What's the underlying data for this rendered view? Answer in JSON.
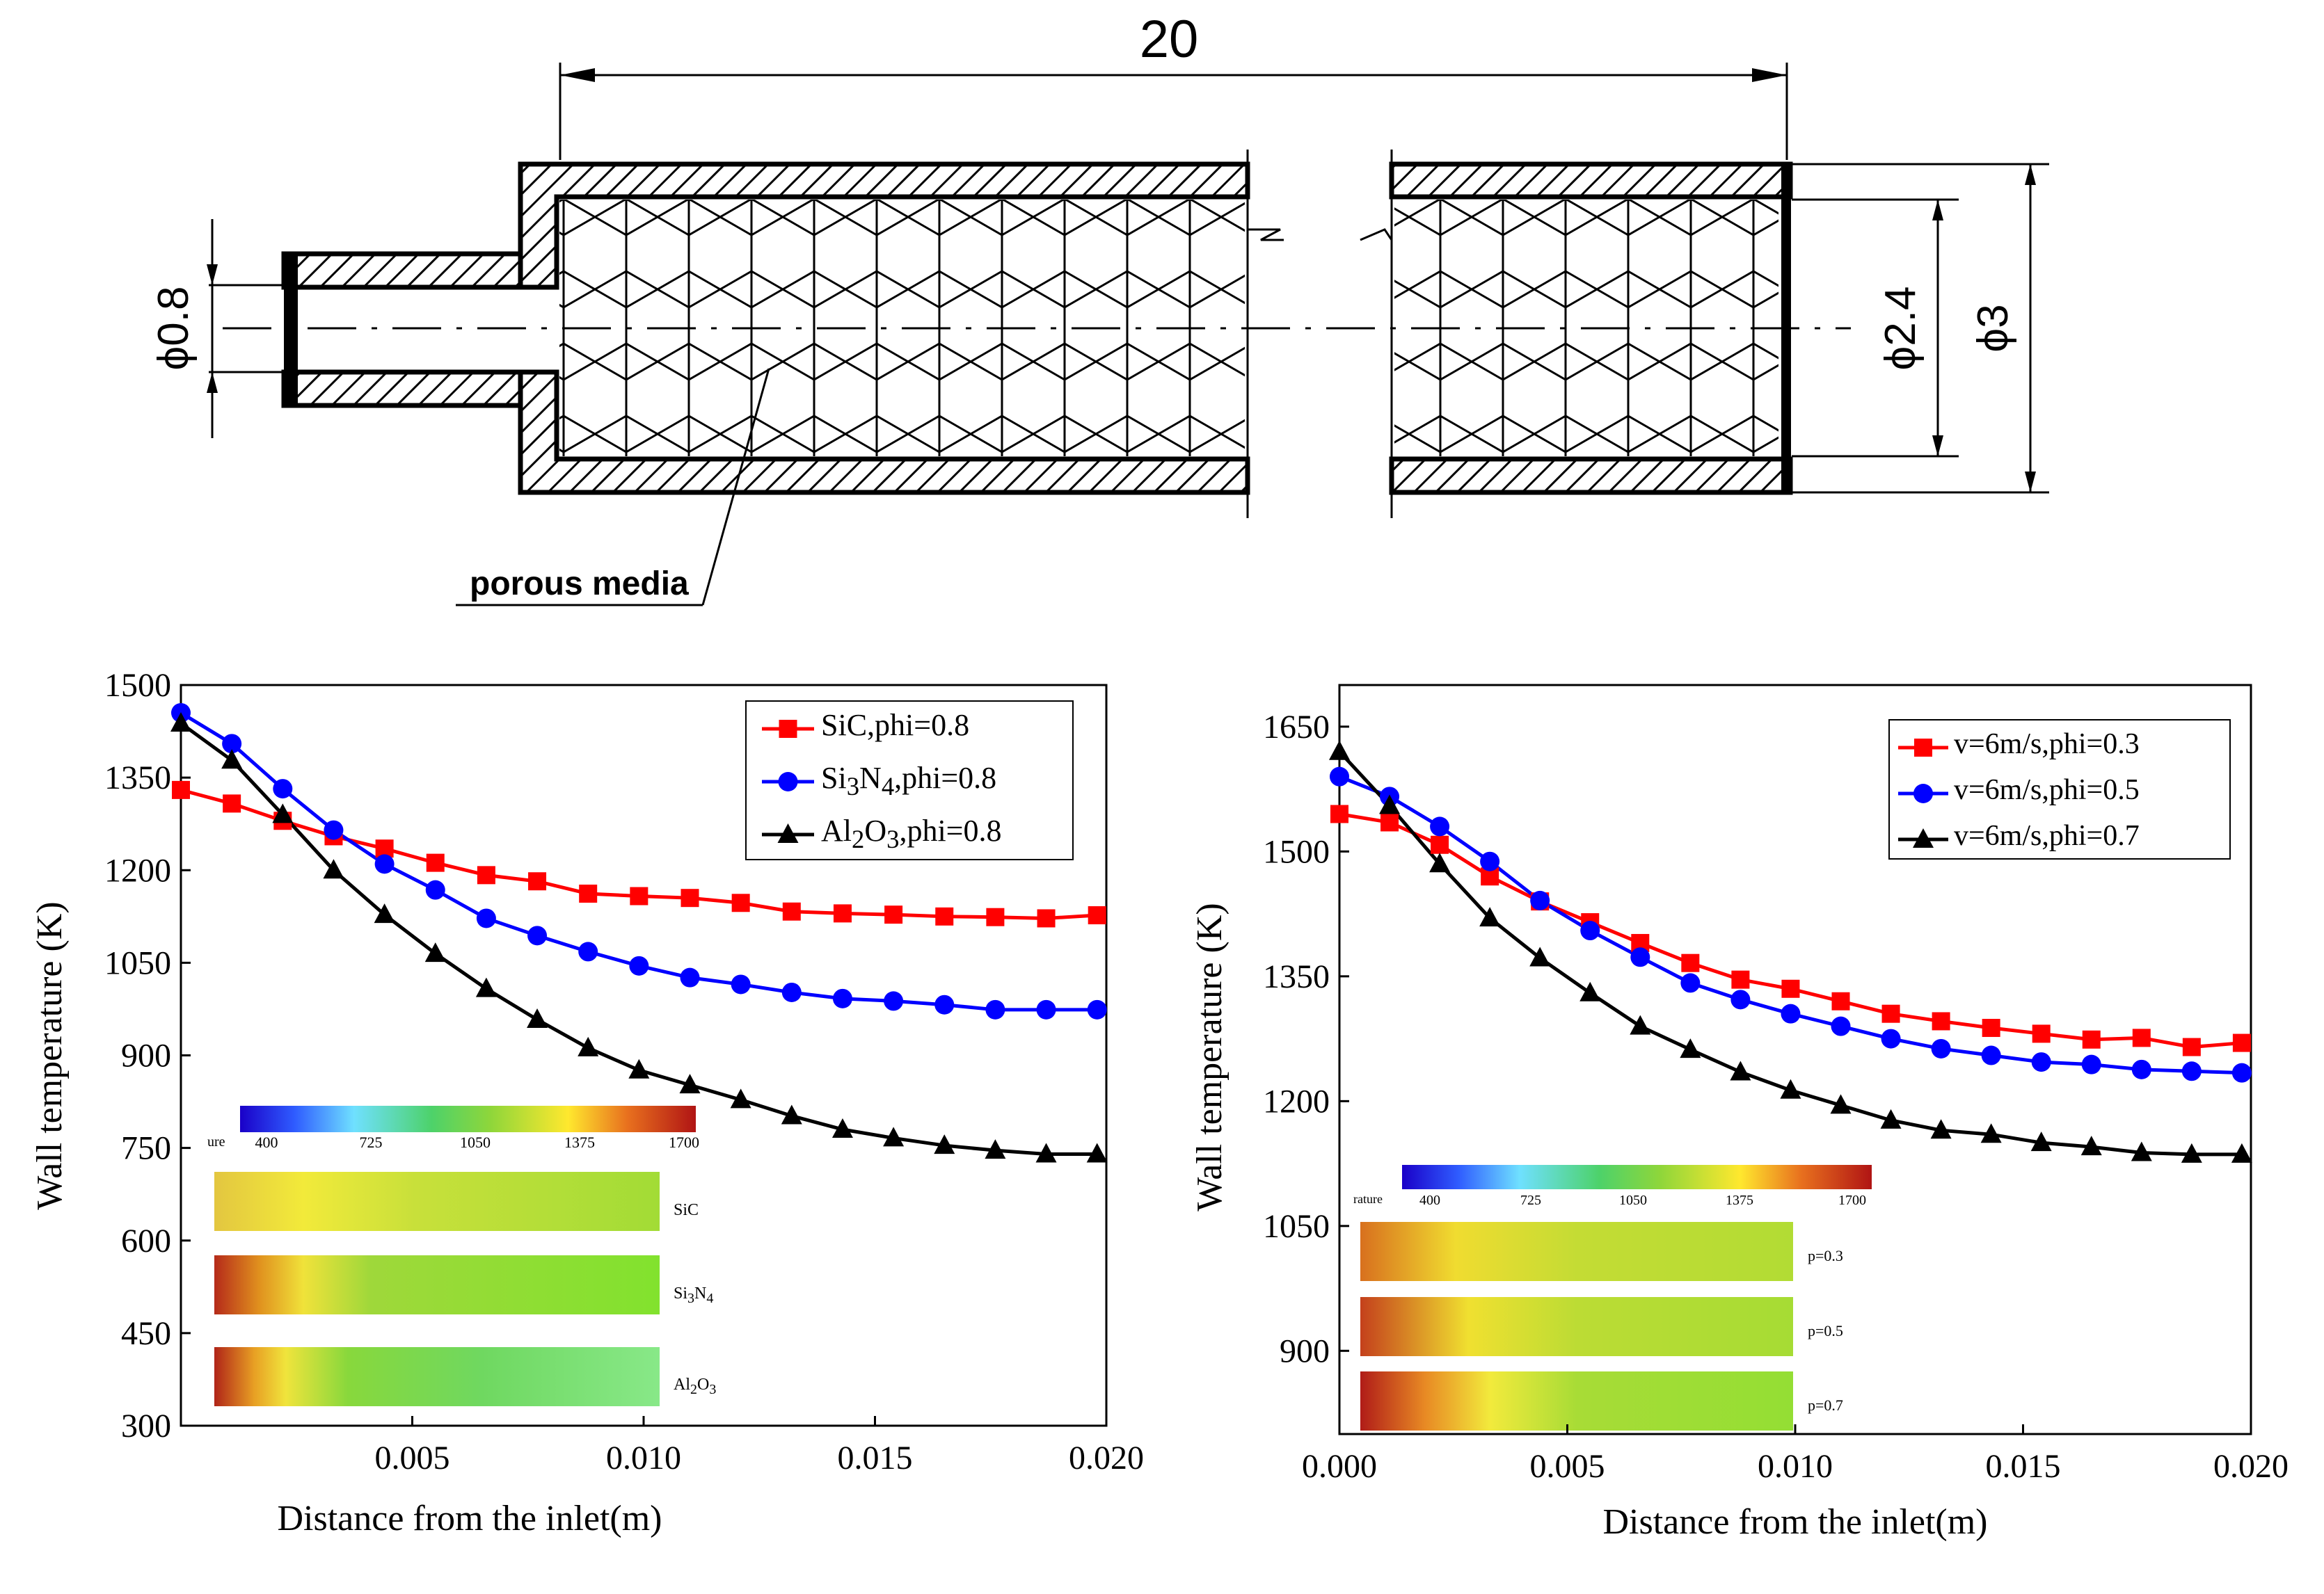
{
  "diagram": {
    "length_label": "20",
    "inlet_diameter_label": "ϕ0.8",
    "inner_diameter_label": "ϕ2.4",
    "outer_diameter_label": "ϕ3",
    "callout_label": "porous  media"
  },
  "chart_data": [
    {
      "type": "line",
      "xlabel": "Distance from the inlet(m)",
      "ylabel": "Wall temperature (K)",
      "xlim": [
        0,
        0.02
      ],
      "ylim": [
        300,
        1500
      ],
      "xticks": [
        "0.005",
        "0.010",
        "0.015",
        "0.020"
      ],
      "xtick_values": [
        0.005,
        0.01,
        0.015,
        0.02
      ],
      "yticks": [
        "300",
        "450",
        "600",
        "750",
        "900",
        "1050",
        "1200",
        "1350",
        "1500"
      ],
      "ytick_values": [
        300,
        450,
        600,
        750,
        900,
        1050,
        1200,
        1350,
        1500
      ],
      "legend_position": "top-right",
      "x": [
        0.0,
        0.0011,
        0.0022,
        0.0033,
        0.0044,
        0.0055,
        0.0066,
        0.0077,
        0.0088,
        0.0099,
        0.011,
        0.0121,
        0.0132,
        0.0143,
        0.0154,
        0.0165,
        0.0176,
        0.0187,
        0.0198
      ],
      "series": [
        {
          "name": "SiC,phi=0.8",
          "name_html": "SiC,phi=0.8",
          "color": "#ff0000",
          "marker": "square",
          "values": [
            1330,
            1308,
            1280,
            1255,
            1235,
            1212,
            1192,
            1182,
            1162,
            1158,
            1155,
            1147,
            1133,
            1130,
            1128,
            1125,
            1124,
            1122,
            1127
          ]
        },
        {
          "name": "Si3N4,phi=0.8",
          "name_html": "Si<sub>3</sub>N<sub>4</sub>,phi=0.8",
          "color": "#0000ff",
          "marker": "circle",
          "values": [
            1455,
            1405,
            1332,
            1265,
            1210,
            1168,
            1122,
            1094,
            1068,
            1045,
            1026,
            1015,
            1002,
            992,
            988,
            982,
            974,
            974,
            974
          ]
        },
        {
          "name": "Al2O3,phi=0.8",
          "name_html": "Al<sub>2</sub>O<sub>3</sub>,phi=0.8",
          "color": "#000000",
          "marker": "triangle",
          "values": [
            1438,
            1378,
            1290,
            1200,
            1128,
            1065,
            1008,
            958,
            912,
            876,
            852,
            828,
            802,
            780,
            766,
            754,
            746,
            740,
            740
          ]
        }
      ],
      "inset": {
        "colorbar_label": "ure",
        "colorbar_ticks": [
          "400",
          "725",
          "1050",
          "1375",
          "1700"
        ],
        "strips": [
          {
            "label": "SiC",
            "label_html": "SiC"
          },
          {
            "label": "Si3N4",
            "label_html": "Si<sub>3</sub>N<sub>4</sub>"
          },
          {
            "label": "Al2O3",
            "label_html": "Al<sub>2</sub>O<sub>3</sub>"
          }
        ]
      }
    },
    {
      "type": "line",
      "xlabel": "Distance from the inlet(m)",
      "ylabel": "Wall temperature (K)",
      "xlim": [
        0,
        0.02
      ],
      "ylim": [
        800,
        1700
      ],
      "xticks": [
        "0.000",
        "0.005",
        "0.010",
        "0.015",
        "0.020"
      ],
      "xtick_values": [
        0.0,
        0.005,
        0.01,
        0.015,
        0.02
      ],
      "yticks": [
        "900",
        "1050",
        "1200",
        "1350",
        "1500",
        "1650"
      ],
      "ytick_values": [
        900,
        1050,
        1200,
        1350,
        1500,
        1650
      ],
      "legend_position": "top-right",
      "x": [
        0.0,
        0.0011,
        0.0022,
        0.0033,
        0.0044,
        0.0055,
        0.0066,
        0.0077,
        0.0088,
        0.0099,
        0.011,
        0.0121,
        0.0132,
        0.0143,
        0.0154,
        0.0165,
        0.0176,
        0.0187,
        0.0198
      ],
      "series": [
        {
          "name": "v=6m/s,phi=0.3",
          "name_html": "v=6m/s,phi=0.3",
          "color": "#ff0000",
          "marker": "square",
          "values": [
            1545,
            1535,
            1508,
            1470,
            1440,
            1415,
            1390,
            1366,
            1346,
            1335,
            1320,
            1305,
            1296,
            1288,
            1281,
            1274,
            1276,
            1265,
            1270
          ]
        },
        {
          "name": "v=6m/s,phi=0.5",
          "name_html": "v=6m/s,phi=0.5",
          "color": "#0000ff",
          "marker": "circle",
          "values": [
            1590,
            1566,
            1530,
            1488,
            1441,
            1405,
            1373,
            1342,
            1322,
            1305,
            1290,
            1275,
            1263,
            1255,
            1247,
            1244,
            1238,
            1236,
            1234
          ]
        },
        {
          "name": "v=6m/s,phi=0.7",
          "name_html": "v=6m/s,phi=0.7",
          "color": "#000000",
          "marker": "triangle",
          "values": [
            1620,
            1555,
            1485,
            1420,
            1372,
            1330,
            1290,
            1262,
            1235,
            1213,
            1195,
            1177,
            1165,
            1160,
            1150,
            1145,
            1138,
            1136,
            1136
          ]
        }
      ],
      "inset": {
        "colorbar_label": "rature",
        "colorbar_ticks": [
          "400",
          "725",
          "1050",
          "1375",
          "1700"
        ],
        "strips": [
          {
            "label": "p=0.3",
            "label_html": "p=0.3"
          },
          {
            "label": "p=0.5",
            "label_html": "p=0.5"
          },
          {
            "label": "p=0.7",
            "label_html": "p=0.7"
          }
        ]
      }
    }
  ]
}
